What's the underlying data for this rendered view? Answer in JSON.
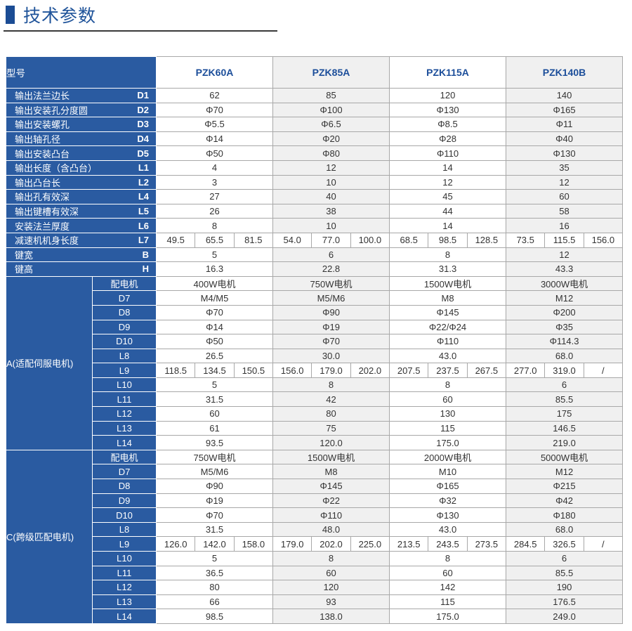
{
  "page": {
    "title": "技术参数"
  },
  "table": {
    "header_label": "型号",
    "models": [
      "PZK60A",
      "PZK85A",
      "PZK115A",
      "PZK140B"
    ],
    "spec_rows": [
      {
        "label": "输出法兰边长",
        "code": "D1",
        "values": [
          "62",
          "85",
          "120",
          "140"
        ]
      },
      {
        "label": "输出安装孔分度圆",
        "code": "D2",
        "values": [
          "Φ70",
          "Φ100",
          "Φ130",
          "Φ165"
        ]
      },
      {
        "label": "输出安装螺孔",
        "code": "D3",
        "values": [
          "Φ5.5",
          "Φ6.5",
          "Φ8.5",
          "Φ11"
        ]
      },
      {
        "label": "输出轴孔径",
        "code": "D4",
        "values": [
          "Φ14",
          "Φ20",
          "Φ28",
          "Φ40"
        ]
      },
      {
        "label": "输出安装凸台",
        "code": "D5",
        "values": [
          "Φ50",
          "Φ80",
          "Φ110",
          "Φ130"
        ]
      },
      {
        "label": "输出长度（含凸台）",
        "code": "L1",
        "values": [
          "4",
          "12",
          "14",
          "35"
        ]
      },
      {
        "label": "输出凸台长",
        "code": "L2",
        "values": [
          "3",
          "10",
          "12",
          "12"
        ]
      },
      {
        "label": "输出孔有效深",
        "code": "L4",
        "values": [
          "27",
          "40",
          "45",
          "60"
        ]
      },
      {
        "label": "输出键槽有效深",
        "code": "L5",
        "values": [
          "26",
          "38",
          "44",
          "58"
        ]
      },
      {
        "label": "安装法兰厚度",
        "code": "L6",
        "values": [
          "8",
          "10",
          "14",
          "16"
        ]
      },
      {
        "label": "减速机机身长度",
        "code": "L7",
        "split": true,
        "values": [
          [
            "49.5",
            "65.5",
            "81.5"
          ],
          [
            "54.0",
            "77.0",
            "100.0"
          ],
          [
            "68.5",
            "98.5",
            "128.5"
          ],
          [
            "73.5",
            "115.5",
            "156.0"
          ]
        ]
      },
      {
        "label": "键宽",
        "code": "B",
        "values": [
          "5",
          "6",
          "8",
          "12"
        ]
      },
      {
        "label": "键高",
        "code": "H",
        "values": [
          "16.3",
          "22.8",
          "31.3",
          "43.3"
        ]
      }
    ],
    "sections": [
      {
        "label": "A(适配伺服电机)",
        "rows": [
          {
            "code": "配电机",
            "values": [
              "400W电机",
              "750W电机",
              "1500W电机",
              "3000W电机"
            ]
          },
          {
            "code": "D7",
            "values": [
              "M4/M5",
              "M5/M6",
              "M8",
              "M12"
            ]
          },
          {
            "code": "D8",
            "values": [
              "Φ70",
              "Φ90",
              "Φ145",
              "Φ200"
            ]
          },
          {
            "code": "D9",
            "values": [
              "Φ14",
              "Φ19",
              "Φ22/Φ24",
              "Φ35"
            ]
          },
          {
            "code": "D10",
            "values": [
              "Φ50",
              "Φ70",
              "Φ110",
              "Φ114.3"
            ]
          },
          {
            "code": "L8",
            "values": [
              "26.5",
              "30.0",
              "43.0",
              "68.0"
            ]
          },
          {
            "code": "L9",
            "split": true,
            "values": [
              [
                "118.5",
                "134.5",
                "150.5"
              ],
              [
                "156.0",
                "179.0",
                "202.0"
              ],
              [
                "207.5",
                "237.5",
                "267.5"
              ],
              [
                "277.0",
                "319.0",
                "/"
              ]
            ]
          },
          {
            "code": "L10",
            "values": [
              "5",
              "8",
              "8",
              "6"
            ]
          },
          {
            "code": "L11",
            "values": [
              "31.5",
              "42",
              "60",
              "85.5"
            ]
          },
          {
            "code": "L12",
            "values": [
              "60",
              "80",
              "130",
              "175"
            ]
          },
          {
            "code": "L13",
            "values": [
              "61",
              "75",
              "115",
              "146.5"
            ]
          },
          {
            "code": "L14",
            "values": [
              "93.5",
              "120.0",
              "175.0",
              "219.0"
            ]
          }
        ]
      },
      {
        "label": "C(跨级匹配电机)",
        "rows": [
          {
            "code": "配电机",
            "values": [
              "750W电机",
              "1500W电机",
              "2000W电机",
              "5000W电机"
            ]
          },
          {
            "code": "D7",
            "values": [
              "M5/M6",
              "M8",
              "M10",
              "M12"
            ]
          },
          {
            "code": "D8",
            "values": [
              "Φ90",
              "Φ145",
              "Φ165",
              "Φ215"
            ]
          },
          {
            "code": "D9",
            "values": [
              "Φ19",
              "Φ22",
              "Φ32",
              "Φ42"
            ]
          },
          {
            "code": "D10",
            "values": [
              "Φ70",
              "Φ110",
              "Φ130",
              "Φ180"
            ]
          },
          {
            "code": "L8",
            "values": [
              "31.5",
              "48.0",
              "43.0",
              "68.0"
            ]
          },
          {
            "code": "L9",
            "split": true,
            "values": [
              [
                "126.0",
                "142.0",
                "158.0"
              ],
              [
                "179.0",
                "202.0",
                "225.0"
              ],
              [
                "213.5",
                "243.5",
                "273.5"
              ],
              [
                "284.5",
                "326.5",
                "/"
              ]
            ]
          },
          {
            "code": "L10",
            "values": [
              "5",
              "8",
              "8",
              "6"
            ]
          },
          {
            "code": "L11",
            "values": [
              "36.5",
              "60",
              "60",
              "85.5"
            ]
          },
          {
            "code": "L12",
            "values": [
              "80",
              "120",
              "142",
              "190"
            ]
          },
          {
            "code": "L13",
            "values": [
              "66",
              "93",
              "115",
              "176.5"
            ]
          },
          {
            "code": "L14",
            "values": [
              "98.5",
              "138.0",
              "175.0",
              "249.0"
            ]
          }
        ]
      }
    ],
    "colors": {
      "label_blue": "#2a5ba1",
      "model_text_blue": "#1c4e9a",
      "alt_column_gray": "#f0f0f0",
      "grid_gray": "#a8a8a8",
      "title_blue": "#20549a"
    }
  }
}
